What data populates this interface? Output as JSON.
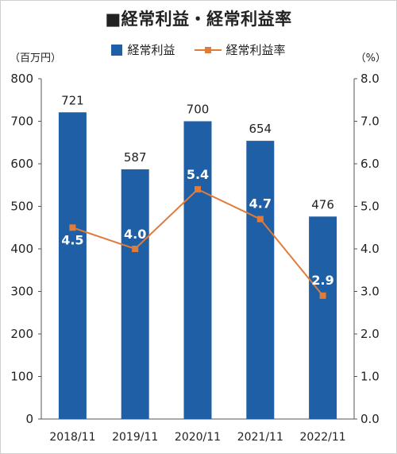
{
  "chart_data": {
    "type": "bar+line",
    "title": "■経常利益・経常利益率",
    "categories": [
      "2018/11",
      "2019/11",
      "2020/11",
      "2021/11",
      "2022/11"
    ],
    "series": [
      {
        "name": "経常利益",
        "kind": "bar",
        "axis": "left",
        "values": [
          721,
          587,
          700,
          654,
          476
        ],
        "labels": [
          "721",
          "587",
          "700",
          "654",
          "476"
        ],
        "color": "#1e5fa6"
      },
      {
        "name": "経常利益率",
        "kind": "line",
        "axis": "right",
        "values": [
          4.5,
          4.0,
          5.4,
          4.7,
          2.9
        ],
        "labels": [
          "4.5",
          "4.0",
          "5.4",
          "4.7",
          "2.9"
        ],
        "color": "#e07b39"
      }
    ],
    "left_axis": {
      "unit": "（百万円）",
      "min": 0,
      "max": 800,
      "step": 100,
      "ticks": [
        "0",
        "100",
        "200",
        "300",
        "400",
        "500",
        "600",
        "700",
        "800"
      ]
    },
    "right_axis": {
      "unit": "（%）",
      "min": 0,
      "max": 8,
      "step": 1,
      "ticks": [
        "0.0",
        "1.0",
        "2.0",
        "3.0",
        "4.0",
        "5.0",
        "6.0",
        "7.0",
        "8.0"
      ]
    },
    "grid": false,
    "legend_position": "top-center"
  }
}
